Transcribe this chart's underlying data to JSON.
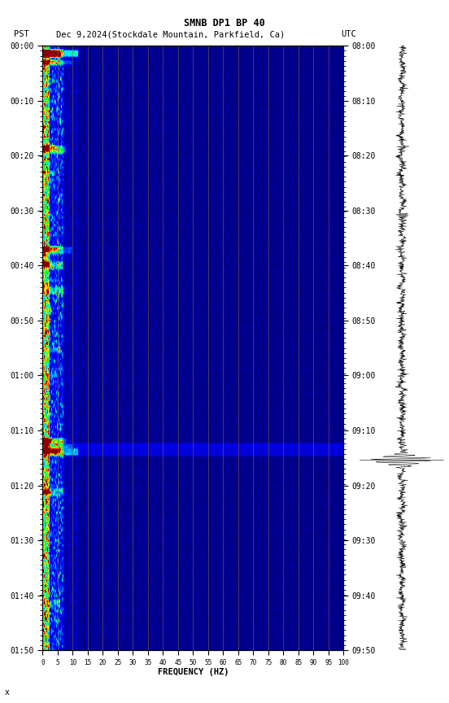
{
  "title_line1": "SMNB DP1 BP 40",
  "title_line2_left": "PST",
  "title_line2_mid": "Dec 9,2024(Stockdale Mountain, Parkfield, Ca)",
  "title_line2_right": "UTC",
  "xlabel": "FREQUENCY (HZ)",
  "freq_ticks": [
    0,
    5,
    10,
    15,
    20,
    25,
    30,
    35,
    40,
    45,
    50,
    55,
    60,
    65,
    70,
    75,
    80,
    85,
    90,
    95,
    100
  ],
  "left_time_labels": [
    "00:00",
    "00:10",
    "00:20",
    "00:30",
    "00:40",
    "00:50",
    "01:00",
    "01:10",
    "01:20",
    "01:30",
    "01:40",
    "01:50"
  ],
  "right_time_labels": [
    "08:00",
    "08:10",
    "08:20",
    "08:30",
    "08:40",
    "08:50",
    "09:00",
    "09:10",
    "09:20",
    "09:30",
    "09:40",
    "09:50"
  ],
  "freq_min": 0,
  "freq_max": 100,
  "time_steps": 240,
  "freq_steps": 500,
  "background_color": "#ffffff",
  "vertical_line_color": "#8B4513",
  "cmap_colors": [
    [
      0.0,
      "#000080"
    ],
    [
      0.15,
      "#0000CD"
    ],
    [
      0.3,
      "#0000FF"
    ],
    [
      0.45,
      "#0080FF"
    ],
    [
      0.55,
      "#00FFFF"
    ],
    [
      0.65,
      "#00FF00"
    ],
    [
      0.75,
      "#FFFF00"
    ],
    [
      0.85,
      "#FF8000"
    ],
    [
      0.92,
      "#FF0000"
    ],
    [
      1.0,
      "#8B0000"
    ]
  ]
}
